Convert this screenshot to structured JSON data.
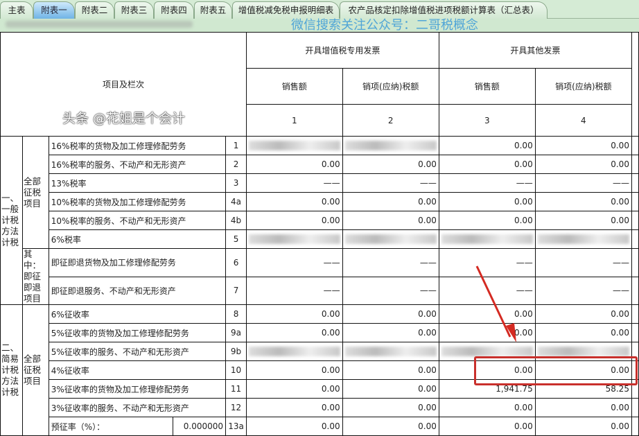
{
  "tabs": [
    {
      "label": "主表",
      "active": false
    },
    {
      "label": "附表一",
      "active": true
    },
    {
      "label": "附表二",
      "active": false
    },
    {
      "label": "附表三",
      "active": false
    },
    {
      "label": "附表四",
      "active": false
    },
    {
      "label": "附表五",
      "active": false
    },
    {
      "label": "增值税减免税申报明细表",
      "active": false
    },
    {
      "label": "农产品核定扣除增值税进项税额计算表（汇总表）",
      "active": false
    }
  ],
  "header": {
    "item_col": "项目及栏次",
    "group1": "开具增值税专用发票",
    "group2": "开具其他发票",
    "sales": "销售额",
    "tax": "销项(应纳)税额",
    "col_nums": [
      "1",
      "2",
      "3",
      "4"
    ]
  },
  "categories": {
    "general": "一、一般计税方法计税",
    "simple": "二、简易计税方法计税",
    "all_items": "全部征税项目",
    "refund_items": "其中：即征即退项目"
  },
  "rows": [
    {
      "label": "16%税率的货物及加工修理修配劳务",
      "no": "1",
      "v": [
        null,
        null,
        "0.00",
        "0.00"
      ]
    },
    {
      "label": "16%税率的服务、不动产和无形资产",
      "no": "2",
      "v": [
        "0.00",
        "0.00",
        "0.00",
        "0.00"
      ]
    },
    {
      "label": "13%税率",
      "no": "3",
      "v": [
        "——",
        "——",
        "——",
        "——"
      ]
    },
    {
      "label": "10%税率的货物及加工修理修配劳务",
      "no": "4a",
      "v": [
        "0.00",
        "0.00",
        "0.00",
        "0.00"
      ]
    },
    {
      "label": "10%税率的服务、不动产和无形资产",
      "no": "4b",
      "v": [
        "0.00",
        "0.00",
        "0.00",
        "0.00"
      ]
    },
    {
      "label": "6%税率",
      "no": "5",
      "v": [
        null,
        null,
        null,
        null
      ]
    },
    {
      "label": "即征即退货物及加工修理修配劳务",
      "no": "6",
      "v": [
        "——",
        "——",
        "——",
        "——"
      ]
    },
    {
      "label": "即征即退服务、不动产和无形资产",
      "no": "7",
      "v": [
        "——",
        "——",
        "——",
        "——"
      ]
    },
    {
      "label": "6%征收率",
      "no": "8",
      "v": [
        "0.00",
        "0.00",
        "0.00",
        "0.00"
      ]
    },
    {
      "label": "5%征收率的货物及加工修理修配劳务",
      "no": "9a",
      "v": [
        "0.00",
        "0.00",
        "0.00",
        "0.00"
      ]
    },
    {
      "label": "5%征收率的服务、不动产和无形资产",
      "no": "9b",
      "v": [
        null,
        null,
        null,
        null
      ]
    },
    {
      "label": "4%征收率",
      "no": "10",
      "v": [
        "0.00",
        "0.00",
        "0.00",
        "0.00"
      ]
    },
    {
      "label": "3%征收率的货物及加工修理修配劳务",
      "no": "11",
      "v": [
        "0.00",
        "0.00",
        "1,941.75",
        "58.25"
      ]
    },
    {
      "label": "3%征收率的服务、不动产和无形资产",
      "no": "12",
      "v": [
        "0.00",
        "0.00",
        "0.00",
        "0.00"
      ]
    },
    {
      "label": "预征率（%）：",
      "rate": "0.000000",
      "no": "13a",
      "v": [
        "0.00",
        "0.00",
        "0.00",
        "0.00"
      ]
    }
  ],
  "watermarks": {
    "center": "微信搜索关注公众号：二哥税概念",
    "corner": "头条 @花姐是个会计"
  },
  "colors": {
    "highlight": "#c9302c",
    "active_tab": "#6fb4e6",
    "tab_bar": "#d5ebd5"
  }
}
